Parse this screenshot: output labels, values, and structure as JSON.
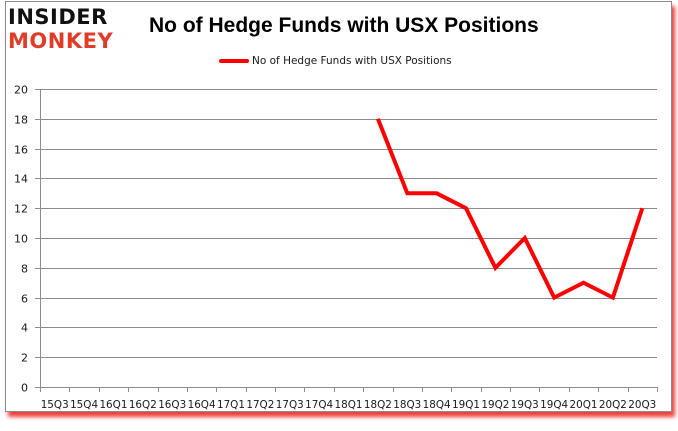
{
  "logo": {
    "line1": "INSIDER",
    "line2": "MONKEY"
  },
  "title": "No of Hedge Funds with USX Positions",
  "legend": {
    "label": "No of Hedge Funds with USX Positions",
    "color": "#ff0000"
  },
  "chart_data": {
    "type": "line",
    "title": "No of Hedge Funds with USX Positions",
    "xlabel": "",
    "ylabel": "",
    "ylim": [
      0,
      20
    ],
    "yticks": [
      0,
      2,
      4,
      6,
      8,
      10,
      12,
      14,
      16,
      18,
      20
    ],
    "grid": "horizontal",
    "legend_position": "top",
    "categories": [
      "15Q3",
      "15Q4",
      "16Q1",
      "16Q2",
      "16Q3",
      "16Q4",
      "17Q1",
      "17Q2",
      "17Q3",
      "17Q4",
      "18Q1",
      "18Q2",
      "18Q3",
      "18Q4",
      "19Q1",
      "19Q2",
      "19Q3",
      "19Q4",
      "20Q1",
      "20Q2",
      "20Q3"
    ],
    "series": [
      {
        "name": "No of Hedge Funds with USX Positions",
        "color": "#ff0000",
        "values": [
          null,
          null,
          null,
          null,
          null,
          null,
          null,
          null,
          null,
          null,
          null,
          18,
          13,
          13,
          12,
          8,
          10,
          6,
          7,
          6,
          12
        ]
      }
    ]
  }
}
